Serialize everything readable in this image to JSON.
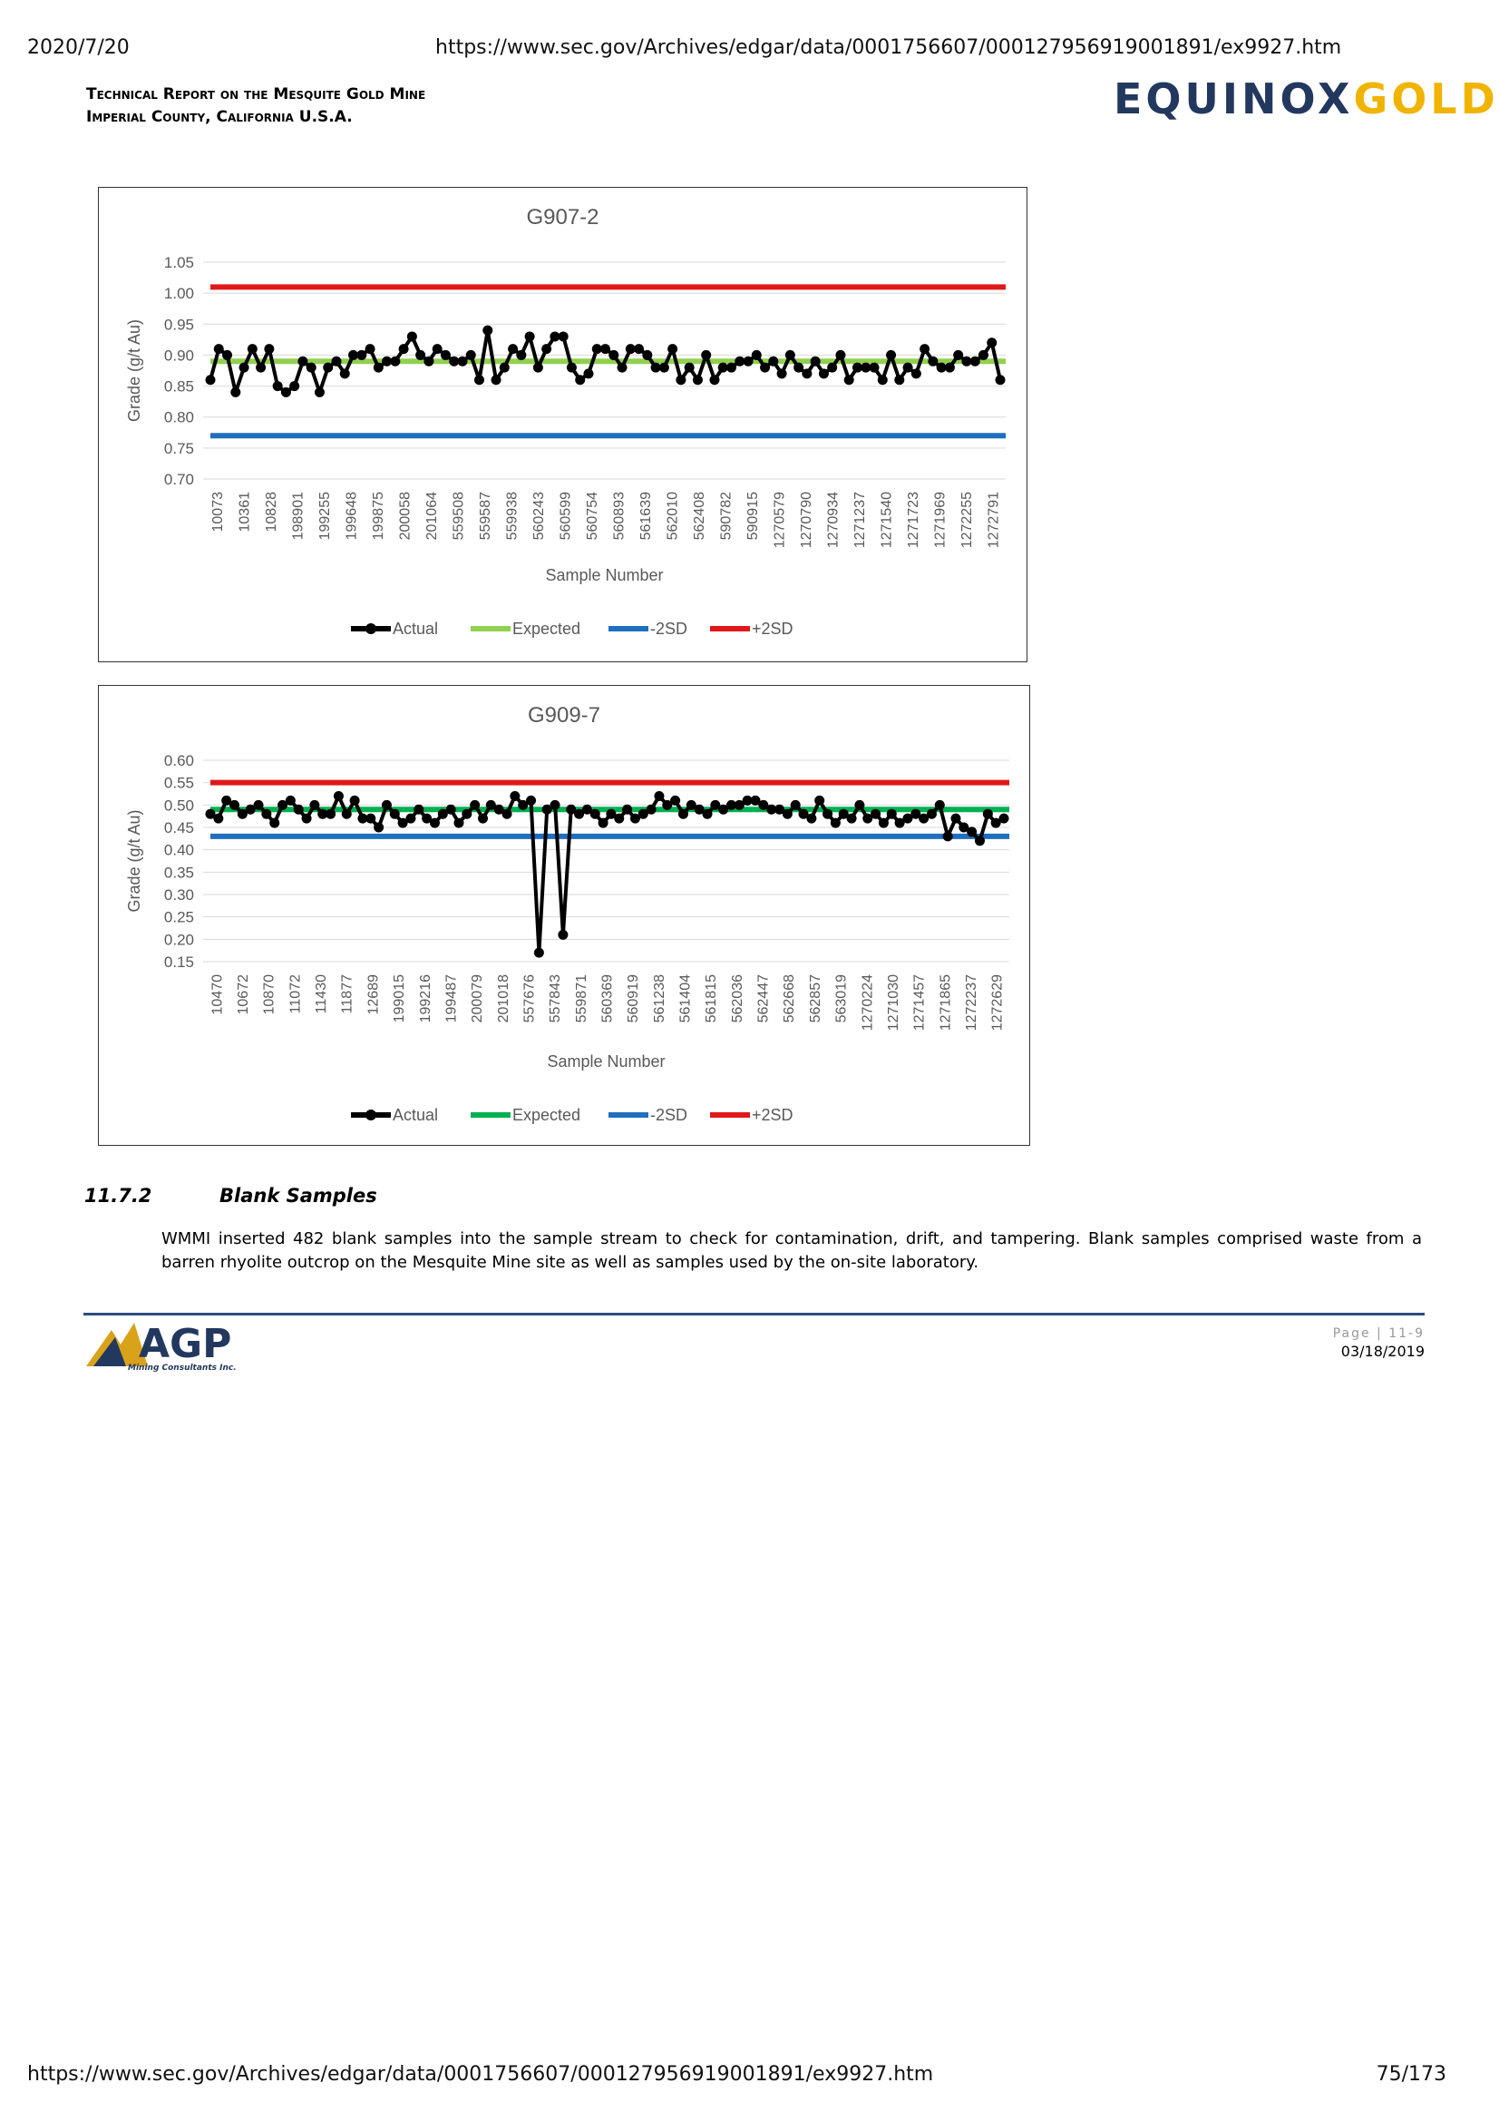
{
  "browser": {
    "date": "2020/7/20",
    "url": "https://www.sec.gov/Archives/edgar/data/0001756607/000127956919001891/ex9927.htm",
    "page_count": "75/173"
  },
  "header": {
    "report_line1": "Technical Report on the Mesquite Gold Mine",
    "report_line2": "Imperial County, California U.S.A.",
    "logo_part1": "EQUINOX",
    "logo_part2": "GOLD"
  },
  "chart_data": [
    {
      "type": "line",
      "title": "G907-2",
      "xlabel": "Sample Number",
      "ylabel": "Grade (g/t Au)",
      "ylim": [
        0.7,
        1.05
      ],
      "yticks": [
        "1.05",
        "1.00",
        "0.95",
        "0.90",
        "0.85",
        "0.80",
        "0.75",
        "0.70"
      ],
      "x_tick_labels": [
        "10073",
        "10361",
        "10828",
        "198901",
        "199255",
        "199648",
        "199875",
        "200058",
        "201064",
        "559508",
        "559587",
        "559938",
        "560243",
        "560599",
        "560754",
        "560893",
        "561639",
        "562010",
        "562408",
        "590782",
        "590915",
        "1270579",
        "1270790",
        "1270934",
        "1271237",
        "1271540",
        "1271723",
        "1271969",
        "1272255",
        "1272791"
      ],
      "legend": [
        "Actual",
        "Expected",
        "-2SD",
        "+2SD"
      ],
      "legend_position": "bottom",
      "colors": {
        "actual": "#000000",
        "expected": "#92d050",
        "minus2sd": "#1f6fbf",
        "plus2sd": "#e01818"
      },
      "expected": 0.89,
      "minus2sd": 0.77,
      "plus2sd": 1.01,
      "actual": [
        0.86,
        0.91,
        0.9,
        0.84,
        0.88,
        0.91,
        0.88,
        0.91,
        0.85,
        0.84,
        0.85,
        0.89,
        0.88,
        0.84,
        0.88,
        0.89,
        0.87,
        0.9,
        0.9,
        0.91,
        0.88,
        0.89,
        0.89,
        0.91,
        0.93,
        0.9,
        0.89,
        0.91,
        0.9,
        0.89,
        0.89,
        0.9,
        0.86,
        0.94,
        0.86,
        0.88,
        0.91,
        0.9,
        0.93,
        0.88,
        0.91,
        0.93,
        0.93,
        0.88,
        0.86,
        0.87,
        0.91,
        0.91,
        0.9,
        0.88,
        0.91,
        0.91,
        0.9,
        0.88,
        0.88,
        0.91,
        0.86,
        0.88,
        0.86,
        0.9,
        0.86,
        0.88,
        0.88,
        0.89,
        0.89,
        0.9,
        0.88,
        0.89,
        0.87,
        0.9,
        0.88,
        0.87,
        0.89,
        0.87,
        0.88,
        0.9,
        0.86,
        0.88,
        0.88,
        0.88,
        0.86,
        0.9,
        0.86,
        0.88,
        0.87,
        0.91,
        0.89,
        0.88,
        0.88,
        0.9,
        0.89,
        0.89,
        0.9,
        0.92,
        0.86
      ]
    },
    {
      "type": "line",
      "title": "G909-7",
      "xlabel": "Sample Number",
      "ylabel": "Grade (g/t Au)",
      "ylim": [
        0.15,
        0.6
      ],
      "yticks": [
        "0.60",
        "0.55",
        "0.50",
        "0.45",
        "0.40",
        "0.35",
        "0.30",
        "0.25",
        "0.20",
        "0.15"
      ],
      "x_tick_labels": [
        "10470",
        "10672",
        "10870",
        "11072",
        "11430",
        "11877",
        "12689",
        "199015",
        "199216",
        "199487",
        "200079",
        "201018",
        "557676",
        "557843",
        "559871",
        "560369",
        "560919",
        "561238",
        "561404",
        "561815",
        "562036",
        "562447",
        "562668",
        "562857",
        "563019",
        "1270224",
        "1271030",
        "1271457",
        "1271865",
        "1272237",
        "1272629"
      ],
      "legend": [
        "Actual",
        "Expected",
        "-2SD",
        "+2SD"
      ],
      "legend_position": "bottom",
      "colors": {
        "actual": "#000000",
        "expected": "#00b050",
        "minus2sd": "#1f6fbf",
        "plus2sd": "#e01818"
      },
      "expected": 0.49,
      "minus2sd": 0.43,
      "plus2sd": 0.55,
      "actual": [
        0.48,
        0.47,
        0.51,
        0.5,
        0.48,
        0.49,
        0.5,
        0.48,
        0.46,
        0.5,
        0.51,
        0.49,
        0.47,
        0.5,
        0.48,
        0.48,
        0.52,
        0.48,
        0.51,
        0.47,
        0.47,
        0.45,
        0.5,
        0.48,
        0.46,
        0.47,
        0.49,
        0.47,
        0.46,
        0.48,
        0.49,
        0.46,
        0.48,
        0.5,
        0.47,
        0.5,
        0.49,
        0.48,
        0.52,
        0.5,
        0.51,
        0.17,
        0.49,
        0.5,
        0.21,
        0.49,
        0.48,
        0.49,
        0.48,
        0.46,
        0.48,
        0.47,
        0.49,
        0.47,
        0.48,
        0.49,
        0.52,
        0.5,
        0.51,
        0.48,
        0.5,
        0.49,
        0.48,
        0.5,
        0.49,
        0.5,
        0.5,
        0.51,
        0.51,
        0.5,
        0.49,
        0.49,
        0.48,
        0.5,
        0.48,
        0.47,
        0.51,
        0.48,
        0.46,
        0.48,
        0.47,
        0.5,
        0.47,
        0.48,
        0.46,
        0.48,
        0.46,
        0.47,
        0.48,
        0.47,
        0.48,
        0.5,
        0.43,
        0.47,
        0.45,
        0.44,
        0.42,
        0.48,
        0.46,
        0.47
      ]
    }
  ],
  "section": {
    "number": "11.7.2",
    "title": "Blank Samples",
    "paragraph": "WMMI inserted 482 blank samples into the sample stream to check for contamination, drift, and tampering. Blank samples comprised waste from a barren rhyolite outcrop on the Mesquite Mine site as well as samples used by the on-site laboratory."
  },
  "footer": {
    "agp_logo": "AGP",
    "agp_tagline": "Mining Consultants Inc.",
    "page_label": "Page | 11-9",
    "date": "03/18/2019"
  }
}
